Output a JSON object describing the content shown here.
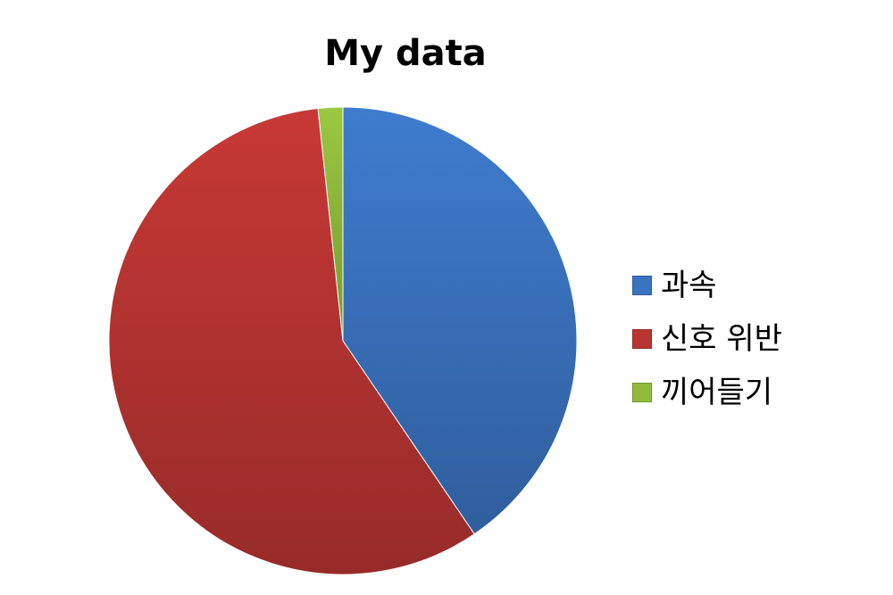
{
  "chart_data": {
    "type": "pie",
    "title": "My data",
    "categories": [
      "과속",
      "신호 위반",
      "끼어들기"
    ],
    "values": [
      40.5,
      57.8,
      1.7
    ],
    "colors": [
      "#3a73c0",
      "#b83532",
      "#8fba3b"
    ],
    "legend": "right"
  }
}
